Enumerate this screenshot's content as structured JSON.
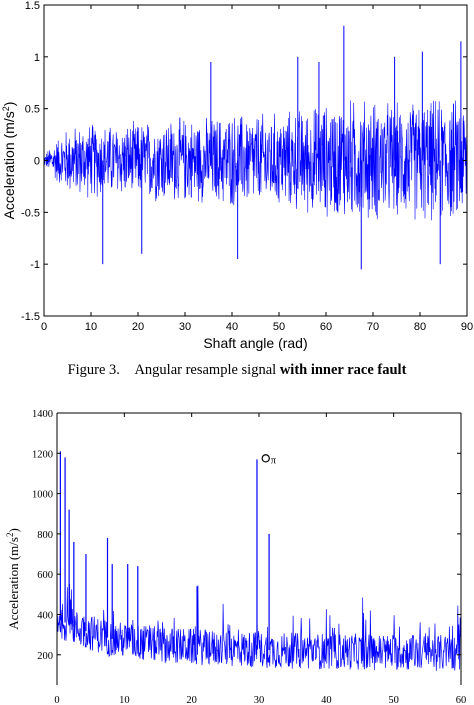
{
  "caption": {
    "label": "Figure 3.",
    "text_plain": "Angular resample signal",
    "text_bold": "with inner race fault"
  },
  "chart_data": [
    {
      "type": "line",
      "xlabel": "Shaft angle (rad)",
      "ylabel_base": "Acceleration (m/s",
      "ylabel_sup": "2",
      "ylabel_end": ")",
      "xlim": [
        0,
        90
      ],
      "ylim": [
        -1.5,
        1.5
      ],
      "xticks": [
        0,
        10,
        20,
        30,
        40,
        50,
        60,
        70,
        80,
        90
      ],
      "yticks": [
        -1.5,
        -1,
        -0.5,
        0,
        0.5,
        1,
        1.5
      ],
      "ytick_labels": [
        "-1.5",
        "-1",
        "-0.5",
        "0",
        "0.5",
        "1",
        "1.5"
      ],
      "line_color": "#0000ff",
      "grid": false,
      "envelope": [
        {
          "x": 0,
          "amp": 0.05
        },
        {
          "x": 2,
          "amp": 0.2
        },
        {
          "x": 5,
          "amp": 0.35
        },
        {
          "x": 10,
          "amp": 0.4
        },
        {
          "x": 15,
          "amp": 0.38
        },
        {
          "x": 20,
          "amp": 0.4
        },
        {
          "x": 25,
          "amp": 0.45
        },
        {
          "x": 30,
          "amp": 0.45
        },
        {
          "x": 35,
          "amp": 0.45
        },
        {
          "x": 40,
          "amp": 0.5
        },
        {
          "x": 45,
          "amp": 0.5
        },
        {
          "x": 50,
          "amp": 0.5
        },
        {
          "x": 55,
          "amp": 0.55
        },
        {
          "x": 60,
          "amp": 0.6
        },
        {
          "x": 65,
          "amp": 0.65
        },
        {
          "x": 70,
          "amp": 0.65
        },
        {
          "x": 75,
          "amp": 0.6
        },
        {
          "x": 80,
          "amp": 0.65
        },
        {
          "x": 85,
          "amp": 0.65
        },
        {
          "x": 90,
          "amp": 0.65
        }
      ],
      "spikes": [
        {
          "x": 12.5,
          "y": -1.0
        },
        {
          "x": 20.8,
          "y": -0.9
        },
        {
          "x": 35.5,
          "y": 0.95
        },
        {
          "x": 41.2,
          "y": -0.95
        },
        {
          "x": 54.0,
          "y": 1.0
        },
        {
          "x": 58.5,
          "y": 0.95
        },
        {
          "x": 63.8,
          "y": 1.3
        },
        {
          "x": 67.5,
          "y": -1.05
        },
        {
          "x": 74.6,
          "y": 1.0
        },
        {
          "x": 80.5,
          "y": 1.05
        },
        {
          "x": 84.3,
          "y": -1.0
        },
        {
          "x": 88.7,
          "y": 1.15
        }
      ]
    },
    {
      "type": "line",
      "xlabel": "",
      "ylabel_base": "Acceleration (m/s",
      "ylabel_sup": "2",
      "ylabel_end": ")",
      "xlim": [
        0,
        60
      ],
      "ylim": [
        50,
        1400
      ],
      "xticks": [
        0,
        10,
        20,
        30,
        40,
        50,
        60
      ],
      "yticks": [
        200,
        400,
        600,
        800,
        1000,
        1200,
        1400
      ],
      "ytick_labels": [
        "200",
        "400",
        "600",
        "800",
        "1000",
        "1200",
        "1400"
      ],
      "line_color": "#0000ff",
      "grid": false,
      "annotation": {
        "text": "O",
        "sub": "π",
        "x": 31,
        "y": 1175
      },
      "baseline": [
        {
          "x": 0,
          "level": 380
        },
        {
          "x": 3,
          "level": 330
        },
        {
          "x": 8,
          "level": 280
        },
        {
          "x": 15,
          "level": 250
        },
        {
          "x": 25,
          "level": 230
        },
        {
          "x": 35,
          "level": 220
        },
        {
          "x": 45,
          "level": 215
        },
        {
          "x": 55,
          "level": 210
        },
        {
          "x": 60,
          "level": 210
        }
      ],
      "peaks": [
        {
          "x": 0.5,
          "y": 1210
        },
        {
          "x": 1.2,
          "y": 1180
        },
        {
          "x": 1.8,
          "y": 920
        },
        {
          "x": 2.5,
          "y": 760
        },
        {
          "x": 4.3,
          "y": 700
        },
        {
          "x": 7.5,
          "y": 780
        },
        {
          "x": 8.2,
          "y": 650
        },
        {
          "x": 12.0,
          "y": 640
        },
        {
          "x": 29.7,
          "y": 1170
        },
        {
          "x": 31.5,
          "y": 800
        },
        {
          "x": 20.8,
          "y": 540
        },
        {
          "x": 10.5,
          "y": 650
        }
      ]
    }
  ]
}
